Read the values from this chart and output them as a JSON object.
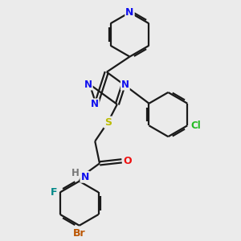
{
  "bg_color": "#ebebeb",
  "bond_color": "#1a1a1a",
  "bond_width": 1.6,
  "atom_colors": {
    "N": "#1010ee",
    "O": "#ee1010",
    "S": "#bbbb00",
    "F": "#008888",
    "Cl": "#22bb22",
    "Br": "#bb5500",
    "H": "#777777",
    "C": "#1a1a1a"
  },
  "font_size": 8.5
}
